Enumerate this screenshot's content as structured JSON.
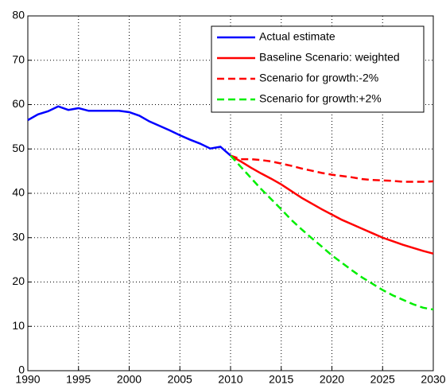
{
  "chart_data": {
    "type": "line",
    "x": [
      1990,
      1991,
      1992,
      1993,
      1994,
      1995,
      1996,
      1997,
      1998,
      1999,
      2000,
      2001,
      2002,
      2003,
      2004,
      2005,
      2006,
      2007,
      2008,
      2009,
      2010,
      2011,
      2012,
      2013,
      2014,
      2015,
      2016,
      2017,
      2018,
      2019,
      2020,
      2021,
      2022,
      2023,
      2024,
      2025,
      2026,
      2027,
      2028,
      2029,
      2030
    ],
    "series": [
      {
        "name": "Actual estimate",
        "color": "#0000ff",
        "dash": false,
        "values": [
          56.5,
          57.8,
          58.5,
          59.6,
          58.8,
          59.2,
          58.6,
          58.6,
          58.6,
          58.6,
          58.3,
          57.5,
          56.2,
          55.2,
          54.2,
          53.1,
          52.1,
          51.2,
          50.1,
          50.5,
          48.5,
          null,
          null,
          null,
          null,
          null,
          null,
          null,
          null,
          null,
          null,
          null,
          null,
          null,
          null,
          null,
          null,
          null,
          null,
          null,
          null
        ]
      },
      {
        "name": "Baseline Scenario: weighted",
        "color": "#ff0000",
        "dash": false,
        "values": [
          null,
          null,
          null,
          null,
          null,
          null,
          null,
          null,
          null,
          null,
          null,
          null,
          null,
          null,
          null,
          null,
          null,
          null,
          null,
          null,
          48.5,
          47.2,
          45.8,
          44.5,
          43.3,
          42.0,
          40.5,
          39.0,
          37.7,
          36.4,
          35.2,
          34.0,
          33.0,
          32.0,
          31.0,
          30.0,
          29.2,
          28.4,
          27.7,
          27.0,
          26.4
        ]
      },
      {
        "name": "Scenario for growth:-2%",
        "color": "#ff0000",
        "dash": true,
        "values": [
          null,
          null,
          null,
          null,
          null,
          null,
          null,
          null,
          null,
          null,
          null,
          null,
          null,
          null,
          null,
          null,
          null,
          null,
          null,
          null,
          48.5,
          47.7,
          47.7,
          47.5,
          47.2,
          46.7,
          46.2,
          45.6,
          45.1,
          44.6,
          44.2,
          43.9,
          43.6,
          43.2,
          43.0,
          42.9,
          42.8,
          42.6,
          42.6,
          42.6,
          42.7
        ]
      },
      {
        "name": "Scenario for growth:+2%",
        "color": "#00ee00",
        "dash": true,
        "values": [
          null,
          null,
          null,
          null,
          null,
          null,
          null,
          null,
          null,
          null,
          null,
          null,
          null,
          null,
          null,
          null,
          null,
          null,
          null,
          null,
          48.5,
          46.0,
          43.5,
          41.0,
          38.7,
          36.4,
          34.0,
          31.9,
          29.9,
          28.0,
          26.0,
          24.3,
          22.6,
          21.0,
          19.6,
          18.2,
          17.0,
          16.0,
          15.0,
          14.2,
          13.8
        ]
      }
    ],
    "xlim": [
      1990,
      2030
    ],
    "xticks": [
      1990,
      1995,
      2000,
      2005,
      2010,
      2015,
      2020,
      2025,
      2030
    ],
    "ylim": [
      0,
      80
    ],
    "yticks": [
      0,
      10,
      20,
      30,
      40,
      50,
      60,
      70,
      80
    ],
    "grid": true,
    "legend": "top-right"
  }
}
